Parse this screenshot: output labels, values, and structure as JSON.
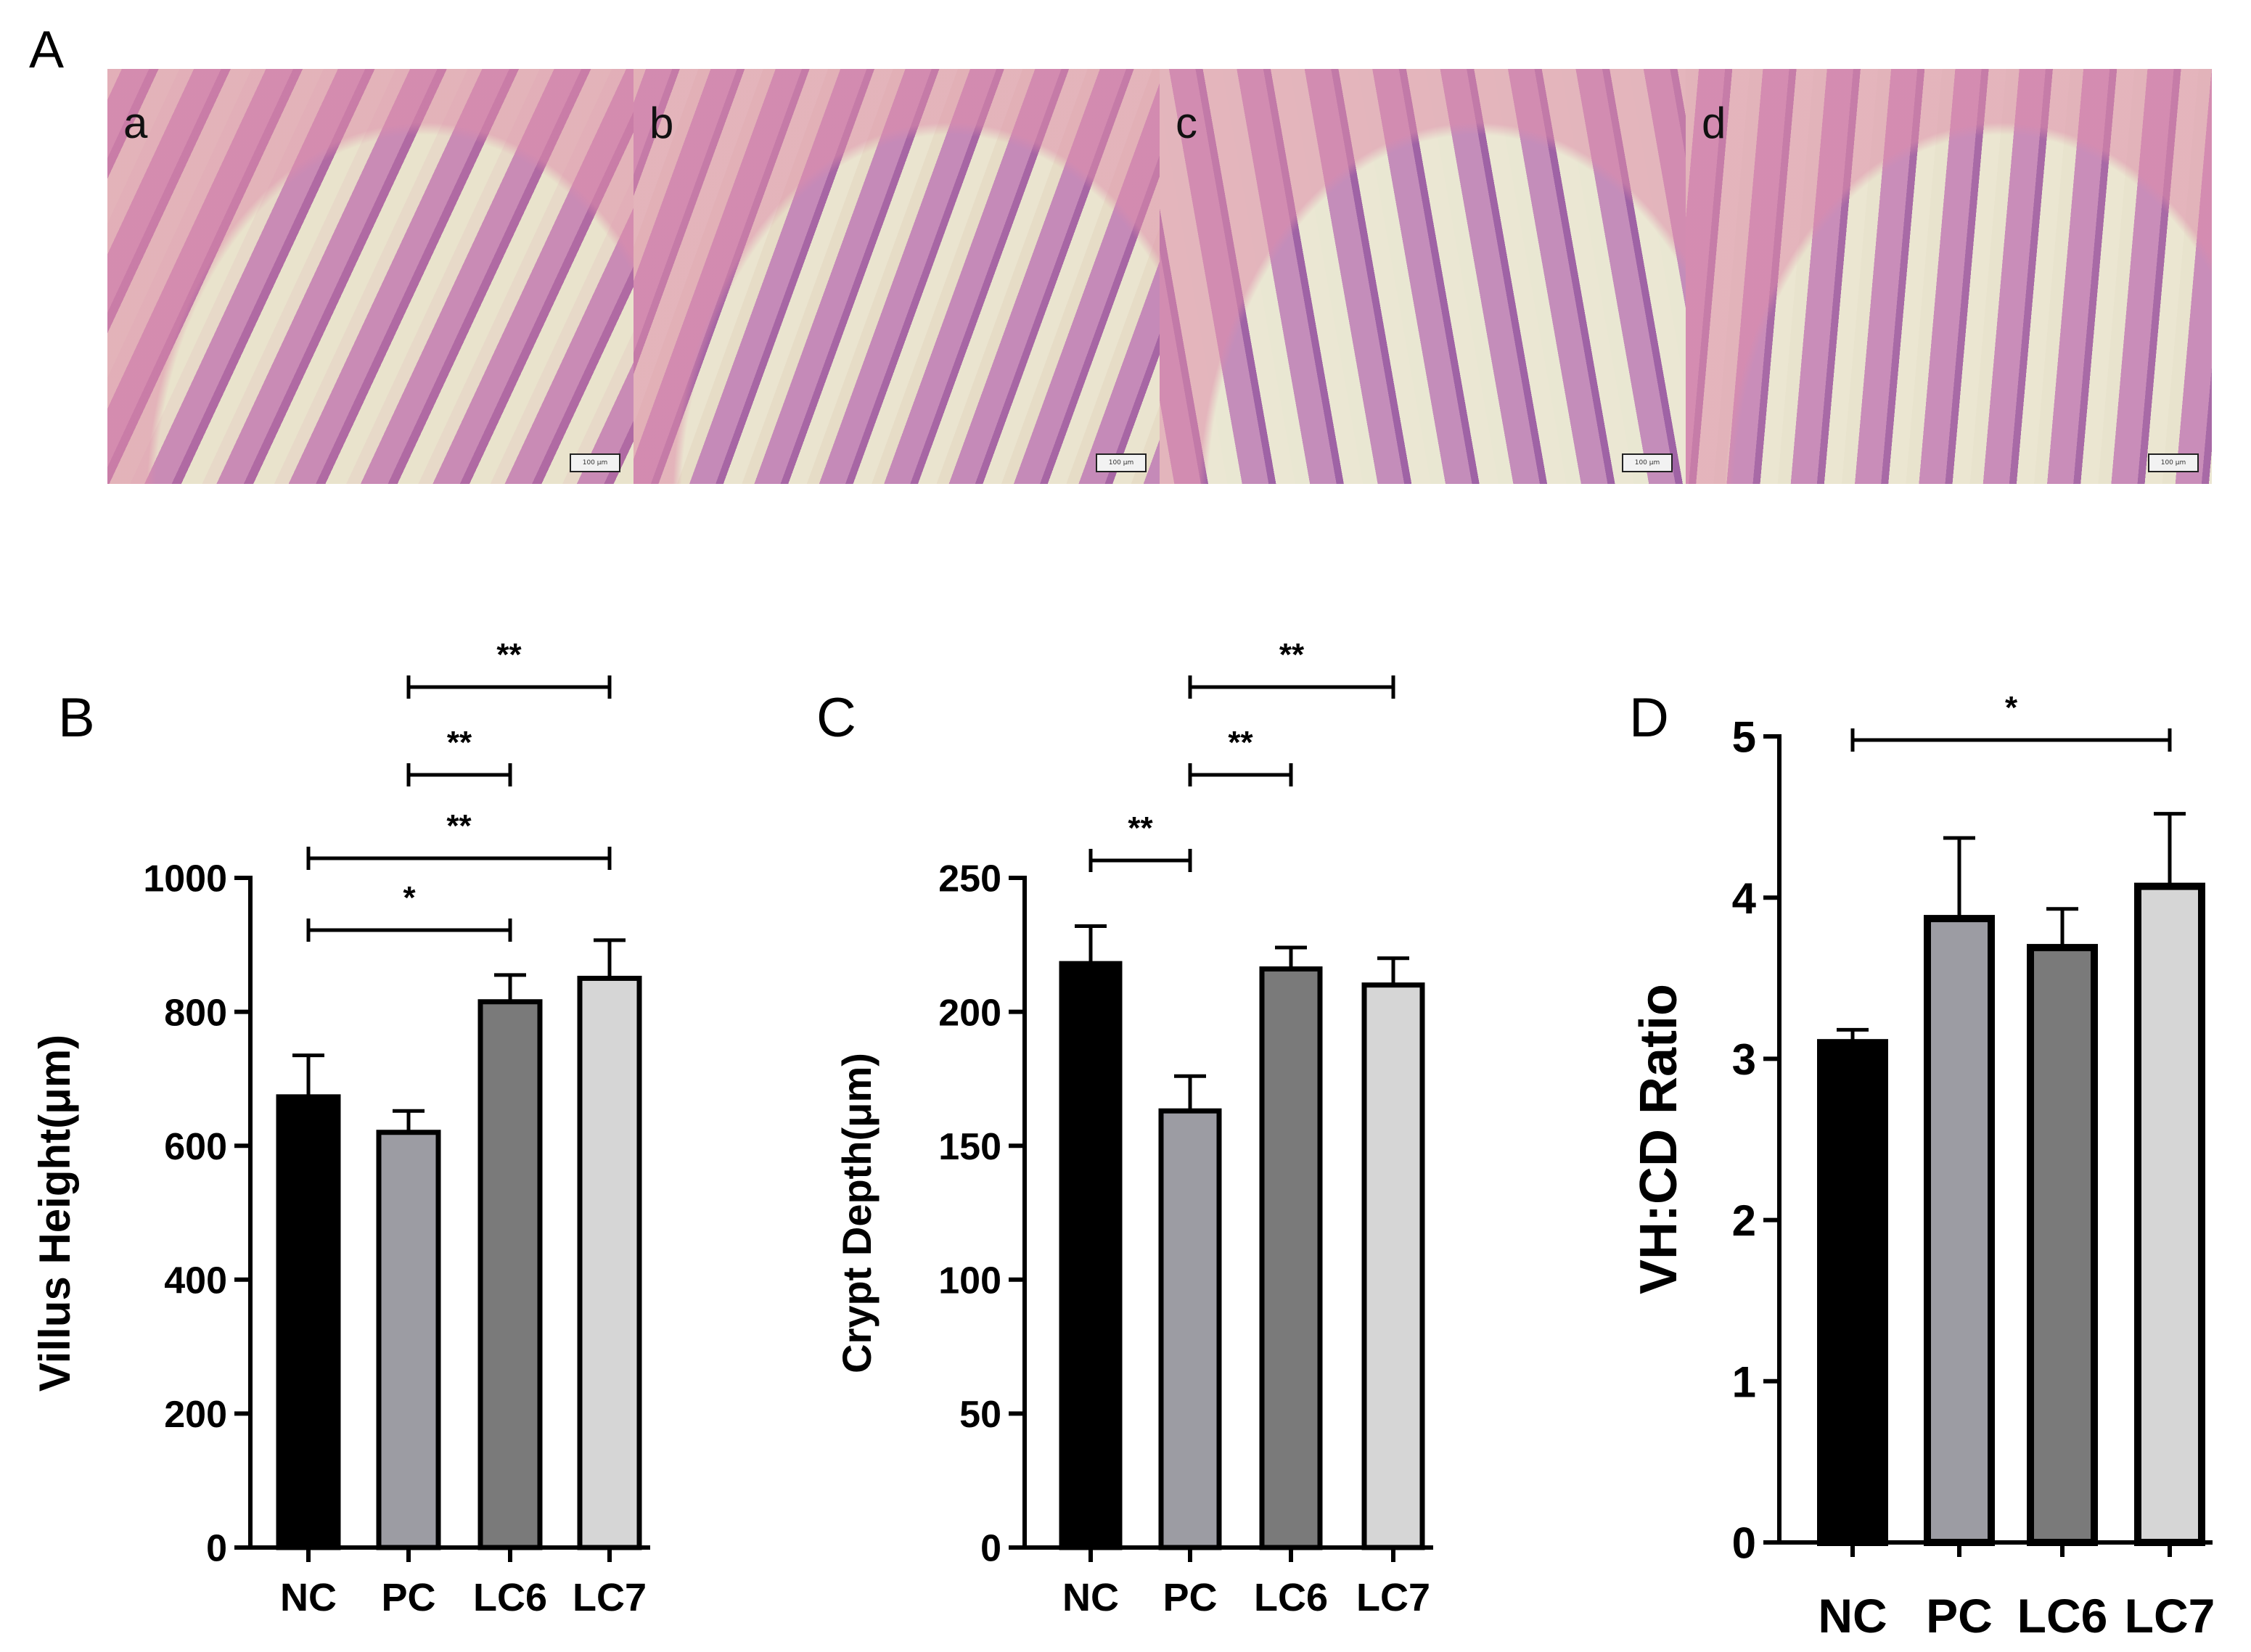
{
  "panel_A": {
    "letter": "A",
    "images": [
      {
        "label": "a",
        "scalebar": "100 μm"
      },
      {
        "label": "b",
        "scalebar": "100 μm"
      },
      {
        "label": "c",
        "scalebar": "100 μm"
      },
      {
        "label": "d",
        "scalebar": "100 μm"
      }
    ]
  },
  "colors": {
    "NC": "#000000",
    "PC": "#9c9ca3",
    "LC6": "#7a7a7a",
    "LC7": "#d6d6d6"
  },
  "chart_data": [
    {
      "id": "B",
      "panel_letter": "B",
      "type": "bar",
      "ylabel": "Villus Height(μm)",
      "categories": [
        "NC",
        "PC",
        "LC6",
        "LC7"
      ],
      "values": [
        673,
        620,
        815,
        850
      ],
      "errors": [
        62,
        32,
        40,
        57
      ],
      "ylim": [
        0,
        1000
      ],
      "yticks": [
        0,
        200,
        400,
        600,
        800,
        1000
      ],
      "significance": [
        {
          "from": "NC",
          "to": "LC6",
          "label": "*"
        },
        {
          "from": "NC",
          "to": "LC7",
          "label": "**"
        },
        {
          "from": "PC",
          "to": "LC6",
          "label": "**"
        },
        {
          "from": "PC",
          "to": "LC7",
          "label": "**"
        }
      ]
    },
    {
      "id": "C",
      "panel_letter": "C",
      "type": "bar",
      "ylabel": "Crypt Depth(μm)",
      "categories": [
        "NC",
        "PC",
        "LC6",
        "LC7"
      ],
      "values": [
        218,
        163,
        216,
        210
      ],
      "errors": [
        14,
        13,
        8,
        10
      ],
      "ylim": [
        0,
        250
      ],
      "yticks": [
        0,
        50,
        100,
        150,
        200,
        250
      ],
      "significance": [
        {
          "from": "NC",
          "to": "PC",
          "label": "**"
        },
        {
          "from": "PC",
          "to": "LC6",
          "label": "**"
        },
        {
          "from": "PC",
          "to": "LC7",
          "label": "**"
        }
      ]
    },
    {
      "id": "D",
      "panel_letter": "D",
      "type": "bar",
      "ylabel": "VH:CD Ratio",
      "categories": [
        "NC",
        "PC",
        "LC6",
        "LC7"
      ],
      "values": [
        3.1,
        3.87,
        3.69,
        4.07
      ],
      "errors": [
        0.08,
        0.5,
        0.24,
        0.45
      ],
      "ylim": [
        0,
        5
      ],
      "yticks": [
        0,
        1,
        2,
        3,
        4,
        5
      ],
      "significance": [
        {
          "from": "NC",
          "to": "LC7",
          "label": "*"
        }
      ]
    }
  ]
}
